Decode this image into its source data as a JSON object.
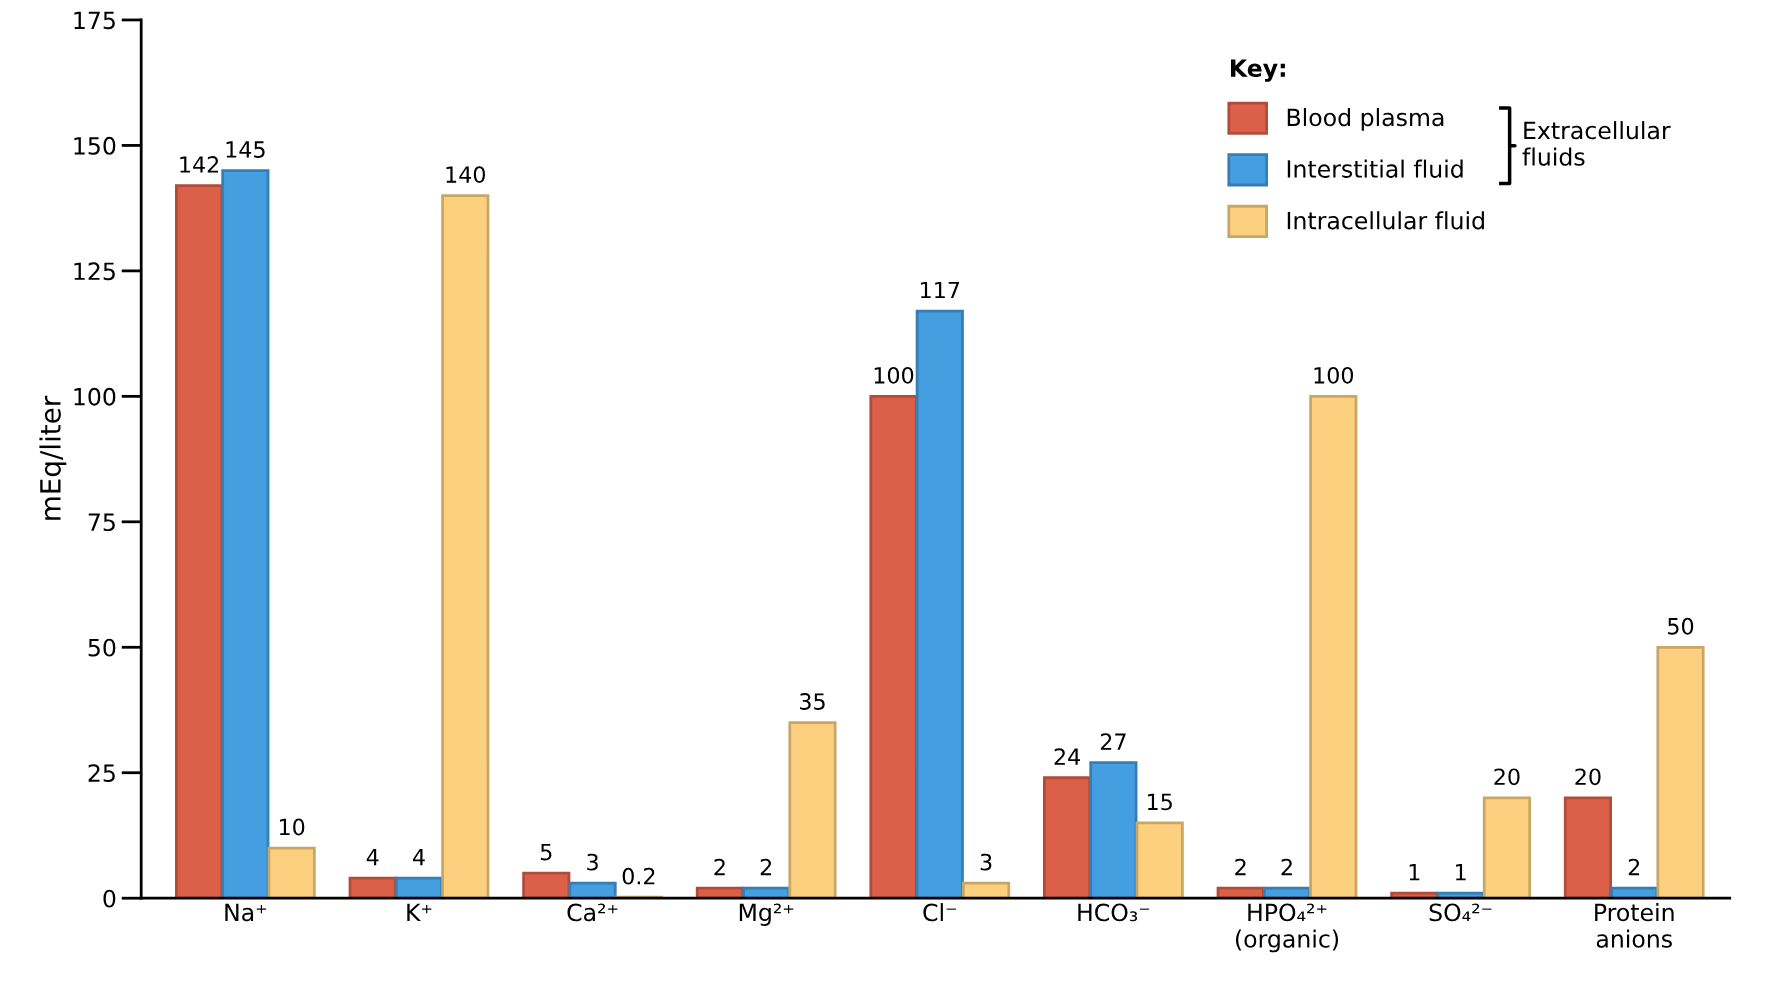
{
  "chart_data": {
    "type": "bar",
    "ylabel": "mEq/liter",
    "legend_title": "Key:",
    "categories": [
      "Na⁺",
      "K⁺",
      "Ca²⁺",
      "Mg²⁺",
      "Cl⁻",
      "HCO₃⁻",
      "HPO₄²⁺\n(organic)",
      "SO₄²⁻",
      "Protein\nanions"
    ],
    "series": [
      {
        "name": "Blood plasma",
        "color": "#dc6048",
        "values": [
          142,
          4,
          5,
          2,
          100,
          24,
          2,
          1,
          20
        ]
      },
      {
        "name": "Interstitial fluid",
        "color": "#449ee0",
        "values": [
          145,
          4,
          3,
          2,
          117,
          27,
          2,
          1,
          2
        ]
      },
      {
        "name": "Intracellular fluid",
        "color": "#fdd080",
        "values": [
          10,
          140,
          0.2,
          35,
          3,
          15,
          100,
          20,
          50
        ]
      }
    ],
    "ylim": [
      0,
      175
    ],
    "yticks": [
      0,
      25,
      50,
      75,
      100,
      125,
      150,
      175
    ],
    "data_labels": true,
    "grid": false,
    "legend": "top right",
    "annotations": [
      "Extracellular\nfluids"
    ]
  }
}
